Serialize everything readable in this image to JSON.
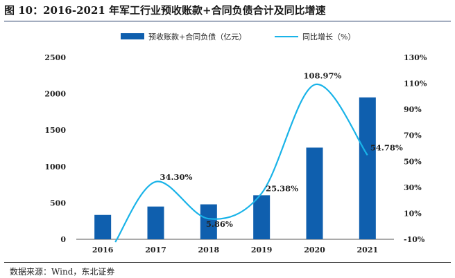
{
  "header": {
    "title": "图 10：2016-2021 年军工行业预收账款+合同负债合计及同比增速"
  },
  "footer": {
    "source": "数据来源：Wind，东北证券"
  },
  "chart_data": {
    "type": "bar+line",
    "categories": [
      "2016",
      "2017",
      "2018",
      "2019",
      "2020",
      "2021"
    ],
    "series": [
      {
        "name": "预收账款+合同负债（亿元）",
        "type": "bar",
        "axis": "left",
        "color": "#0f5fae",
        "values": [
          335,
          450,
          480,
          605,
          1260,
          1950
        ]
      },
      {
        "name": "同比增长（%）",
        "type": "line",
        "axis": "right",
        "color": "#19b3e8",
        "values": [
          null,
          34.3,
          5.86,
          25.38,
          108.97,
          54.78
        ],
        "data_labels": [
          "",
          "34.30%",
          "5.86%",
          "25.38%",
          "108.97%",
          "54.78%"
        ]
      }
    ],
    "left_axis": {
      "min": 0,
      "max": 2500,
      "ticks": [
        "0",
        "500",
        "1000",
        "1500",
        "2000",
        "2500"
      ]
    },
    "right_axis": {
      "min": -10,
      "max": 130,
      "ticks": [
        "-10%",
        "10%",
        "30%",
        "50%",
        "70%",
        "90%",
        "110%",
        "130%"
      ]
    },
    "legend_position": "top-center",
    "grid": false
  }
}
